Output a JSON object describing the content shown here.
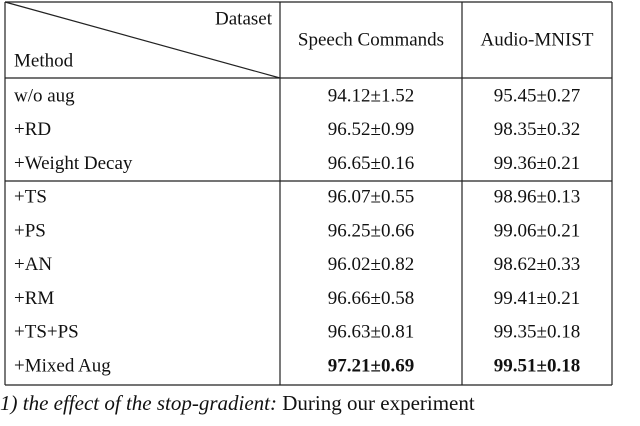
{
  "table": {
    "header": {
      "dataset": "Dataset",
      "method": "Method",
      "columns": [
        "Speech Commands",
        "Audio-MNIST"
      ]
    },
    "rows": [
      [
        "w/o aug",
        "94.12±1.52",
        "95.45±0.27"
      ],
      [
        "+RD",
        "96.52±0.99",
        "98.35±0.32"
      ],
      [
        "+Weight Decay",
        "96.65±0.16",
        "99.36±0.21"
      ],
      [
        "+TS",
        "96.07±0.55",
        "98.96±0.13"
      ],
      [
        "+PS",
        "96.25±0.66",
        "99.06±0.21"
      ],
      [
        "+AN",
        "96.02±0.82",
        "98.62±0.33"
      ],
      [
        "+RM",
        "96.66±0.58",
        "99.41±0.21"
      ],
      [
        "+TS+PS",
        "96.63±0.81",
        "99.35±0.18"
      ],
      [
        "+Mixed Aug",
        "97.21±0.69",
        "99.51±0.18"
      ]
    ]
  },
  "caption": {
    "heading": "1) the effect of the stop-gradient:",
    "text": "During our experiment"
  }
}
